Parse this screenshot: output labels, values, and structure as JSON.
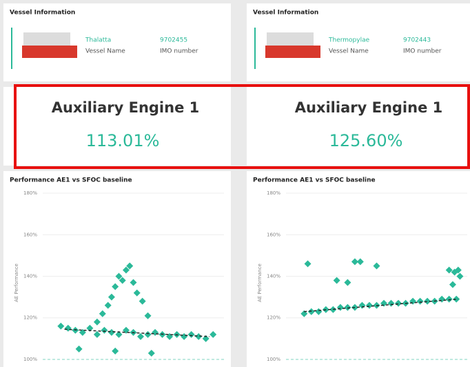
{
  "panels": [
    {
      "vessel_info": {
        "title": "Vessel Information",
        "name": "Thalatta",
        "name_label": "Vessel Name",
        "imo": "9702455",
        "imo_label": "IMO number"
      },
      "kpi": {
        "title": "Auxiliary Engine 1",
        "value": "113.01%"
      }
    },
    {
      "vessel_info": {
        "title": "Vessel Information",
        "name": "Thermopylae",
        "name_label": "Vessel Name",
        "imo": "9702443",
        "imo_label": "IMO number"
      },
      "kpi": {
        "title": "Auxiliary Engine 1",
        "value": "125.60%"
      }
    }
  ],
  "chart_data": [
    {
      "type": "scatter",
      "title": "Performance AE1 vs SFOC baseline",
      "y_label": "AE Performance",
      "color": "#2bb999",
      "x": [
        10,
        14,
        18,
        22,
        26,
        30,
        34,
        38,
        42,
        46,
        50,
        54,
        58,
        62,
        66,
        70,
        74,
        78,
        82,
        86,
        90,
        94,
        30,
        33,
        36,
        38,
        40,
        42,
        44,
        46,
        48,
        50,
        52,
        55,
        58,
        20,
        40,
        60
      ],
      "values": [
        116,
        115,
        114,
        113,
        115,
        112,
        114,
        113,
        112,
        114,
        113,
        111,
        112,
        113,
        112,
        111,
        112,
        111,
        112,
        111,
        110,
        112,
        118,
        122,
        126,
        130,
        135,
        140,
        138,
        143,
        145,
        137,
        132,
        128,
        121,
        105,
        104,
        103
      ],
      "trend": {
        "x": [
          12,
          92
        ],
        "values": [
          114.5,
          111
        ]
      },
      "xlim": [
        0,
        100
      ],
      "ylim": [
        98,
        182
      ],
      "yticks": [
        {
          "value": 100,
          "label": "100%"
        },
        {
          "value": 120,
          "label": "120%"
        },
        {
          "value": 140,
          "label": "140%"
        },
        {
          "value": 160,
          "label": "160%"
        },
        {
          "value": 180,
          "label": "180%"
        }
      ]
    },
    {
      "type": "scatter",
      "title": "Performance AE1 vs SFOC baseline",
      "y_label": "AE Performance",
      "color": "#2bb999",
      "x": [
        10,
        14,
        18,
        22,
        26,
        30,
        34,
        38,
        42,
        46,
        50,
        54,
        58,
        62,
        66,
        70,
        74,
        78,
        82,
        86,
        90,
        94,
        12,
        38,
        41,
        50,
        28,
        34,
        90,
        93,
        95,
        96,
        92
      ],
      "values": [
        122,
        123,
        123,
        124,
        124,
        125,
        125,
        125,
        126,
        126,
        126,
        127,
        127,
        127,
        127,
        128,
        128,
        128,
        128,
        129,
        129,
        129,
        146,
        147,
        147,
        145,
        138,
        137,
        143,
        142,
        143,
        140,
        136
      ],
      "trend": {
        "x": [
          10,
          95
        ],
        "values": [
          123,
          129
        ]
      },
      "xlim": [
        0,
        100
      ],
      "ylim": [
        98,
        182
      ],
      "yticks": [
        {
          "value": 100,
          "label": "100%"
        },
        {
          "value": 120,
          "label": "120%"
        },
        {
          "value": 140,
          "label": "140%"
        },
        {
          "value": 160,
          "label": "160%"
        },
        {
          "value": 180,
          "label": "180%"
        }
      ]
    }
  ]
}
